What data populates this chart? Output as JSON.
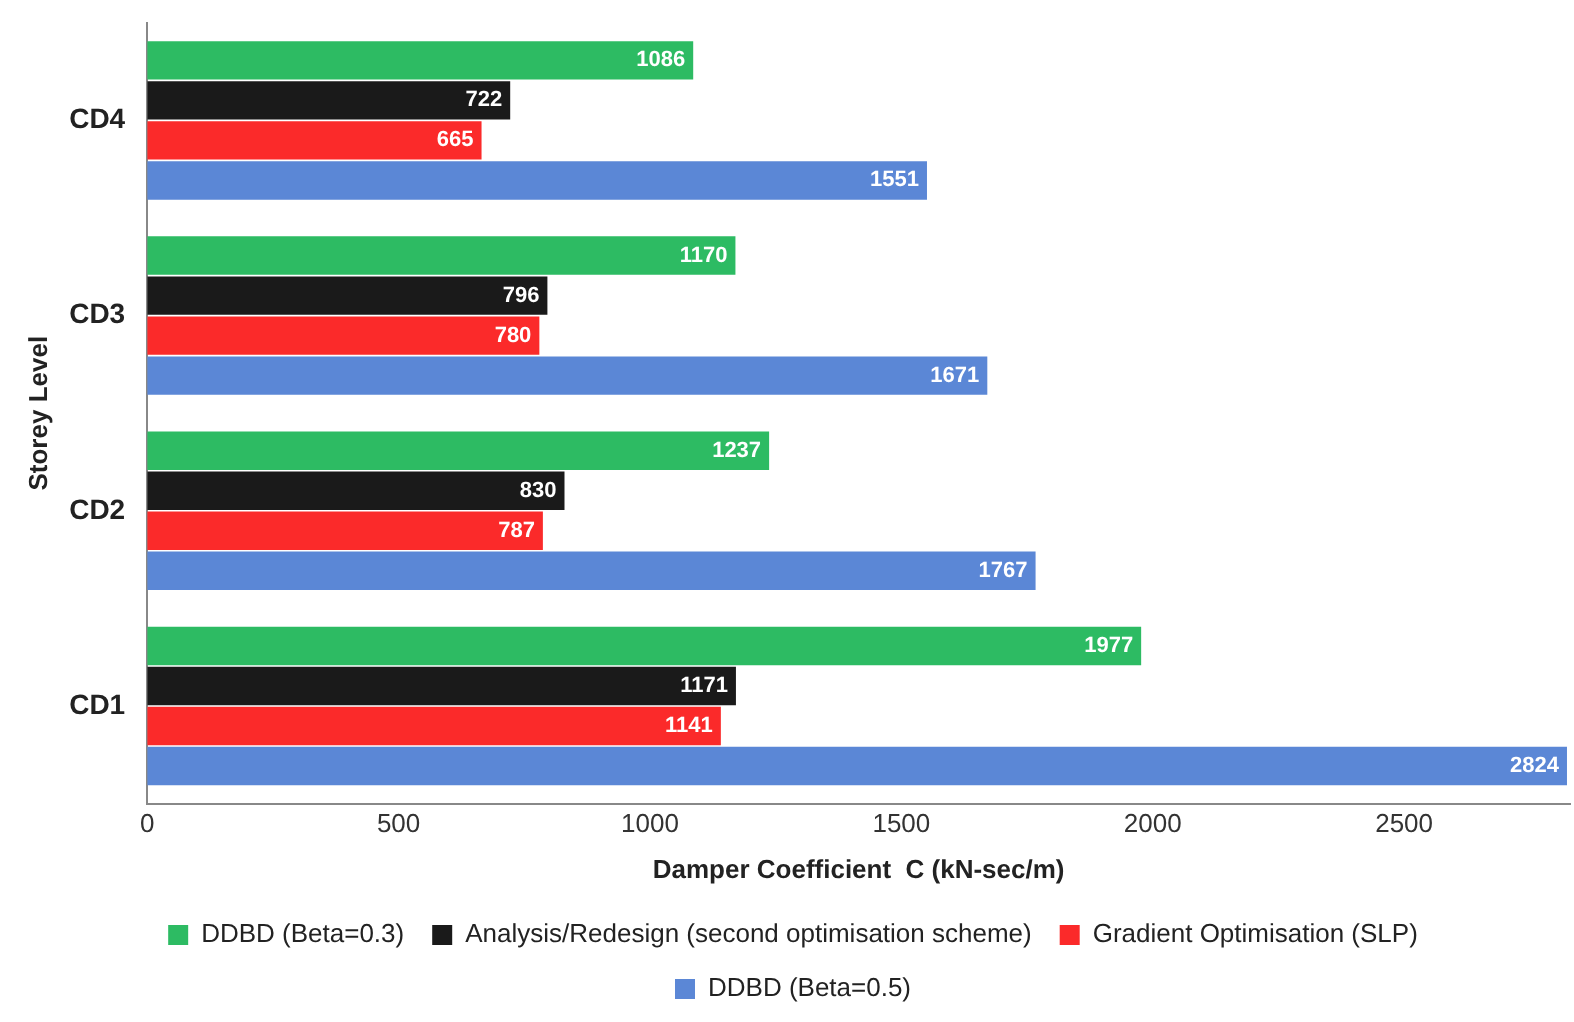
{
  "chart_data": {
    "type": "bar",
    "orientation": "horizontal",
    "xlabel": "Damper Coefficient  C (kN-sec/m)",
    "ylabel": "Storey Level",
    "categories": [
      "CD4",
      "CD3",
      "CD2",
      "CD1"
    ],
    "series": [
      {
        "name": "DDBD (Beta=0.3)",
        "color": "#2dbb63",
        "values": [
          1086,
          1170,
          1237,
          1977
        ]
      },
      {
        "name": "Analysis/Redesign (second optimisation scheme)",
        "color": "#1a1a1a",
        "values": [
          722,
          796,
          830,
          1171
        ]
      },
      {
        "name": "Gradient Optimisation (SLP)",
        "color": "#fb2a2a",
        "values": [
          665,
          780,
          787,
          1141
        ]
      },
      {
        "name": "DDBD (Beta=0.5)",
        "color": "#5b87d6",
        "values": [
          1551,
          1671,
          1767,
          2824
        ]
      }
    ],
    "xlim": [
      0,
      2830
    ],
    "xticks": [
      0,
      500,
      1000,
      1500,
      2000,
      2500
    ],
    "data_labels": true,
    "legend": "bottom",
    "grid": false
  }
}
